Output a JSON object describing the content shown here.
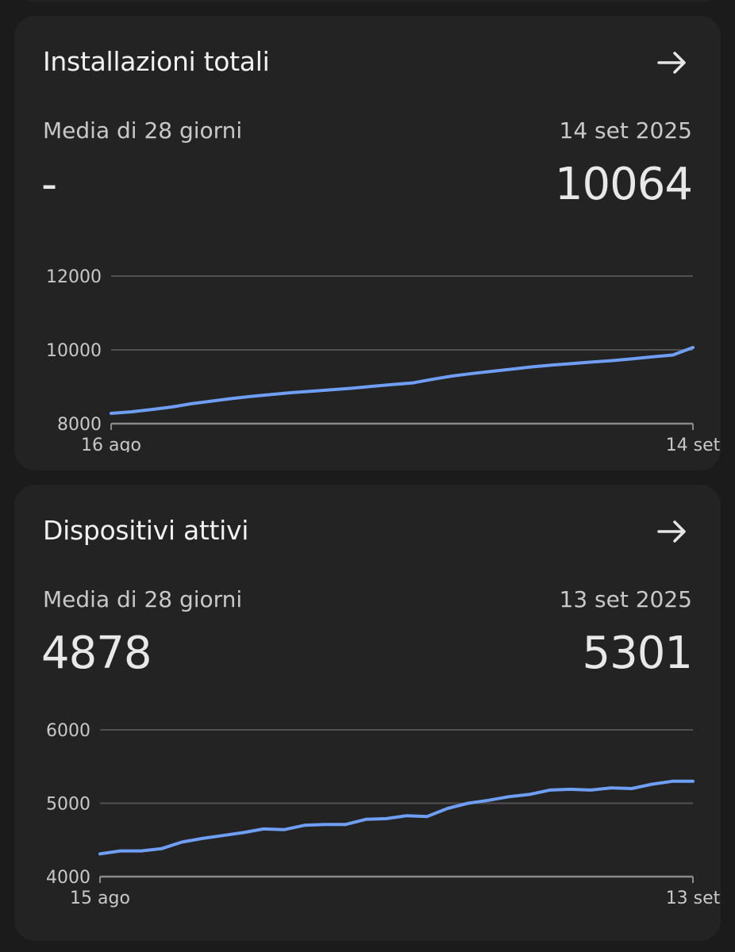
{
  "cards": [
    {
      "title": "Installazioni totali",
      "left_label": "Media di 28 giorni",
      "right_label": "14 set 2025",
      "left_value": "-",
      "right_value": "10064",
      "arrow_icon": "arrow-right-icon"
    },
    {
      "title": "Dispositivi attivi",
      "left_label": "Media di 28 giorni",
      "right_label": "13 set 2025",
      "left_value": "4878",
      "right_value": "5301",
      "arrow_icon": "arrow-right-icon"
    }
  ],
  "colors": {
    "background": "#1b1b1b",
    "card": "#232323",
    "line": "#6f9ef5",
    "grid": "#505050"
  },
  "chart_data": [
    {
      "type": "line",
      "x_tick_labels": [
        "16 ago",
        "14 set"
      ],
      "y_ticks": [
        8000,
        10000,
        12000
      ],
      "ylim": [
        8000,
        12000
      ],
      "grid": true,
      "series": [
        {
          "values": [
            8280,
            8320,
            8380,
            8450,
            8540,
            8610,
            8680,
            8740,
            8790,
            8840,
            8880,
            8920,
            8960,
            9010,
            9060,
            9100,
            9200,
            9290,
            9360,
            9420,
            9480,
            9540,
            9590,
            9630,
            9670,
            9710,
            9760,
            9810,
            9860,
            10064
          ]
        }
      ]
    },
    {
      "type": "line",
      "x_tick_labels": [
        "15 ago",
        "13 set"
      ],
      "y_ticks": [
        4000,
        5000,
        6000
      ],
      "ylim": [
        4000,
        6000
      ],
      "grid": true,
      "series": [
        {
          "values": [
            4310,
            4350,
            4350,
            4380,
            4470,
            4520,
            4560,
            4600,
            4650,
            4640,
            4700,
            4710,
            4710,
            4780,
            4790,
            4830,
            4820,
            4930,
            5000,
            5040,
            5090,
            5120,
            5180,
            5190,
            5180,
            5210,
            5200,
            5260,
            5300,
            5301
          ]
        }
      ]
    }
  ]
}
